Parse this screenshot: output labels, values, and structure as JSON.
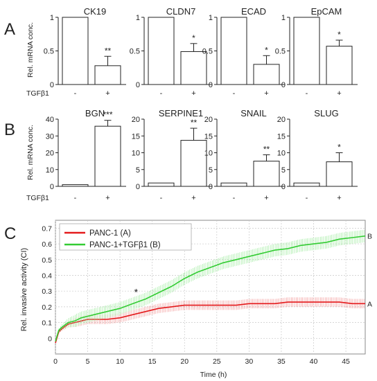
{
  "panels": {
    "A": {
      "label": "A",
      "ylabel": "Rel. mRNA conc.",
      "treatment_label": "TGFβ1",
      "conditions": [
        "-",
        "+"
      ],
      "charts": [
        {
          "title": "CK19",
          "ticks": [
            "0",
            "0.5",
            "1"
          ]
        },
        {
          "title": "CLDN7",
          "ticks": [
            "0",
            "0.5",
            "1"
          ]
        },
        {
          "title": "ECAD",
          "ticks": [
            "0",
            "0.5",
            "1"
          ]
        },
        {
          "title": "EpCAM",
          "ticks": [
            "0",
            "0.5",
            "1"
          ]
        }
      ]
    },
    "B": {
      "label": "B",
      "ylabel": "Rel. mRNA conc.",
      "treatment_label": "TGFβ1",
      "conditions": [
        "-",
        "+"
      ],
      "charts": [
        {
          "title": "BGN",
          "ticks": [
            "0",
            "10",
            "20",
            "30",
            "40"
          ]
        },
        {
          "title": "SERPINE1",
          "ticks": [
            "0",
            "5",
            "10",
            "15",
            "20"
          ]
        },
        {
          "title": "SNAIL",
          "ticks": [
            "0",
            "5",
            "10",
            "15",
            "20"
          ]
        },
        {
          "title": "SLUG",
          "ticks": [
            "0",
            "5",
            "10",
            "15",
            "20"
          ]
        }
      ]
    },
    "C": {
      "label": "C",
      "xlabel": "Time (h)",
      "ylabel": "Rel. invasive activity (CI)",
      "xticks": [
        "0",
        "5",
        "10",
        "15",
        "20",
        "25",
        "30",
        "35",
        "40",
        "45"
      ],
      "yticks": [
        "0",
        "0.1",
        "0.2",
        "0.3",
        "0.4",
        "0.5",
        "0.6",
        "0.7"
      ],
      "annotation": "*",
      "end_labels": [
        "A",
        "B"
      ]
    }
  },
  "chart_data": [
    {
      "type": "bar",
      "title": "CK19",
      "categories": [
        "-",
        "+"
      ],
      "values": [
        1.0,
        0.28
      ],
      "errors": [
        0,
        0.14
      ],
      "significance": [
        "",
        "**"
      ],
      "ylim": [
        0,
        1
      ],
      "ylabel": "Rel. mRNA conc.",
      "xlabel": "TGFβ1"
    },
    {
      "type": "bar",
      "title": "CLDN7",
      "categories": [
        "-",
        "+"
      ],
      "values": [
        1.0,
        0.49
      ],
      "errors": [
        0,
        0.12
      ],
      "significance": [
        "",
        "*"
      ],
      "ylim": [
        0,
        1
      ]
    },
    {
      "type": "bar",
      "title": "ECAD",
      "categories": [
        "-",
        "+"
      ],
      "values": [
        1.0,
        0.3
      ],
      "errors": [
        0,
        0.13
      ],
      "significance": [
        "",
        "*"
      ],
      "ylim": [
        0,
        1
      ]
    },
    {
      "type": "bar",
      "title": "EpCAM",
      "categories": [
        "-",
        "+"
      ],
      "values": [
        1.0,
        0.57
      ],
      "errors": [
        0,
        0.09
      ],
      "significance": [
        "",
        "*"
      ],
      "ylim": [
        0,
        1
      ]
    },
    {
      "type": "bar",
      "title": "BGN",
      "categories": [
        "-",
        "+"
      ],
      "values": [
        1.0,
        35.8
      ],
      "errors": [
        0,
        3.5
      ],
      "significance": [
        "",
        "***"
      ],
      "ylim": [
        0,
        40
      ],
      "ylabel": "Rel. mRNA conc.",
      "xlabel": "TGFβ1"
    },
    {
      "type": "bar",
      "title": "SERPINE1",
      "categories": [
        "-",
        "+"
      ],
      "values": [
        1.0,
        13.7
      ],
      "errors": [
        0,
        3.6
      ],
      "significance": [
        "",
        "**"
      ],
      "ylim": [
        0,
        20
      ]
    },
    {
      "type": "bar",
      "title": "SNAIL",
      "categories": [
        "-",
        "+"
      ],
      "values": [
        1.0,
        7.5
      ],
      "errors": [
        0,
        1.9
      ],
      "significance": [
        "",
        "**"
      ],
      "ylim": [
        0,
        20
      ]
    },
    {
      "type": "bar",
      "title": "SLUG",
      "categories": [
        "-",
        "+"
      ],
      "values": [
        1.0,
        7.3
      ],
      "errors": [
        0,
        2.7
      ],
      "significance": [
        "",
        "*"
      ],
      "ylim": [
        0,
        20
      ]
    },
    {
      "type": "line",
      "xlabel": "Time (h)",
      "ylabel": "Rel. invasive activity (CI)",
      "xlim": [
        0,
        48
      ],
      "ylim": [
        -0.1,
        0.75
      ],
      "grid": true,
      "legend_position": "top-left",
      "x": [
        0,
        0.5,
        1,
        2,
        3,
        4,
        5,
        6,
        8,
        10,
        12,
        14,
        16,
        18,
        20,
        22,
        24,
        26,
        28,
        30,
        32,
        34,
        36,
        38,
        40,
        42,
        44,
        46,
        48
      ],
      "series": [
        {
          "name": "PANC-1 (A)",
          "color": "#e41a1c",
          "end_label": "A",
          "values": [
            -0.03,
            0.04,
            0.06,
            0.09,
            0.1,
            0.11,
            0.12,
            0.12,
            0.12,
            0.13,
            0.15,
            0.17,
            0.19,
            0.2,
            0.21,
            0.21,
            0.21,
            0.21,
            0.21,
            0.22,
            0.22,
            0.22,
            0.23,
            0.23,
            0.23,
            0.23,
            0.23,
            0.22,
            0.22
          ],
          "error": 0.03
        },
        {
          "name": "PANC-1+TGFβ1 (B)",
          "color": "#33cc33",
          "end_label": "B",
          "values": [
            -0.02,
            0.05,
            0.07,
            0.1,
            0.11,
            0.13,
            0.14,
            0.15,
            0.17,
            0.19,
            0.22,
            0.25,
            0.29,
            0.33,
            0.38,
            0.42,
            0.45,
            0.48,
            0.5,
            0.52,
            0.54,
            0.56,
            0.57,
            0.59,
            0.6,
            0.61,
            0.63,
            0.64,
            0.65
          ],
          "error": 0.04
        }
      ],
      "annotations": [
        {
          "text": "*",
          "x": 12.5
        }
      ]
    }
  ]
}
